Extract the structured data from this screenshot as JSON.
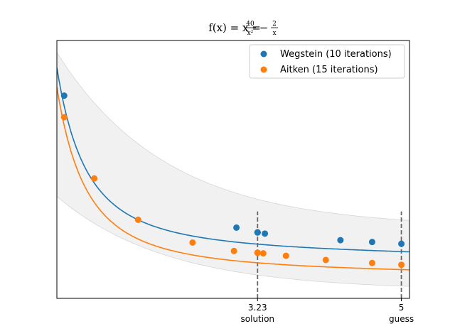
{
  "chart_data": {
    "type": "scatter",
    "title": {
      "prefix": "f(x) = x = ",
      "term1_num": "40",
      "term1_den": "x²",
      "operator": " − ",
      "term2_num": "2",
      "term2_den": "x"
    },
    "xlabel": "",
    "ylabel": "",
    "xlim": [
      0.76,
      5.1
    ],
    "ylim": [
      0.0,
      4.3
    ],
    "grid": false,
    "legend_position": "top-right",
    "x_ticks": [
      {
        "value": 3.23,
        "label": "3.23",
        "sublabel": "solution"
      },
      {
        "value": 5.0,
        "label": "5",
        "sublabel": "guess"
      }
    ],
    "vlines": [
      3.23,
      5.0
    ],
    "band": {
      "lower_at_xmin": 1.7,
      "lower_at_xmax": 0.2,
      "upper_at_xmin": 4.1,
      "upper_at_xmax": 1.3
    },
    "series": [
      {
        "name": "Wegstein (10 iterations)",
        "color": "#1f77b4",
        "curve": {
          "a": 0.5,
          "b": 0.22,
          "c": 0.35
        },
        "points": [
          {
            "x": 0.85,
            "y": 3.38
          },
          {
            "x": 2.97,
            "y": 1.18
          },
          {
            "x": 3.23,
            "y": 1.1
          },
          {
            "x": 3.32,
            "y": 1.08
          },
          {
            "x": 4.25,
            "y": 0.97
          },
          {
            "x": 4.64,
            "y": 0.94
          },
          {
            "x": 5.0,
            "y": 0.91
          },
          {
            "x": 3.23,
            "y": 1.1
          },
          {
            "x": 3.23,
            "y": 1.1
          },
          {
            "x": 3.23,
            "y": 1.1
          }
        ]
      },
      {
        "name": "Aitken (15 iterations)",
        "color": "#ff7f0e",
        "curve": {
          "a": 0.2,
          "b": 0.22,
          "c": 0.25
        },
        "points": [
          {
            "x": 0.85,
            "y": 3.02
          },
          {
            "x": 1.22,
            "y": 2.0
          },
          {
            "x": 1.76,
            "y": 1.31
          },
          {
            "x": 2.43,
            "y": 0.93
          },
          {
            "x": 2.94,
            "y": 0.79
          },
          {
            "x": 3.23,
            "y": 0.76
          },
          {
            "x": 3.3,
            "y": 0.75
          },
          {
            "x": 3.58,
            "y": 0.71
          },
          {
            "x": 4.07,
            "y": 0.64
          },
          {
            "x": 4.64,
            "y": 0.59
          },
          {
            "x": 5.0,
            "y": 0.56
          },
          {
            "x": 3.23,
            "y": 0.76
          },
          {
            "x": 3.23,
            "y": 0.76
          },
          {
            "x": 3.23,
            "y": 0.76
          },
          {
            "x": 3.23,
            "y": 0.76
          }
        ]
      }
    ]
  }
}
